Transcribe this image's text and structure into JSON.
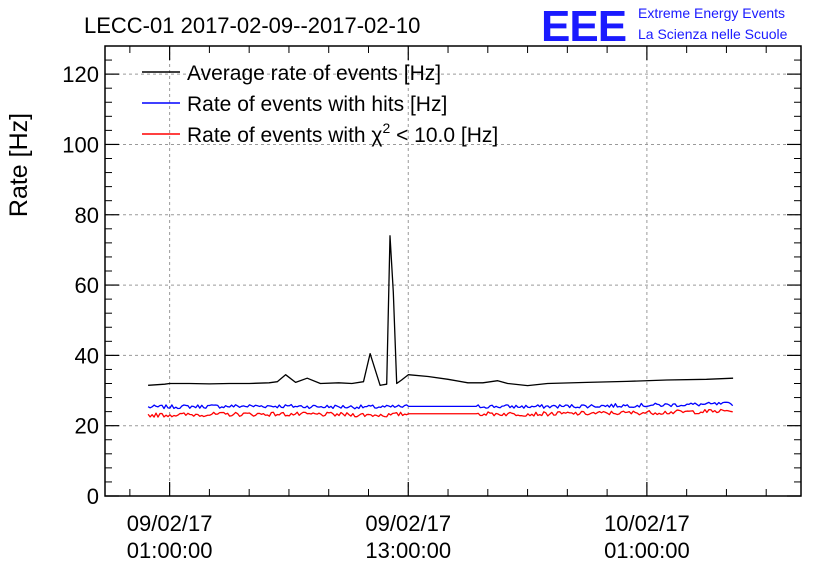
{
  "header": {
    "title": "LECC-01 2017-02-09--2017-02-10",
    "logo_mark": "EEE",
    "logo_line1": "Extreme Energy Events",
    "logo_line2": "La Scienza nelle Scuole"
  },
  "colors": {
    "avg": "#000000",
    "hits": "#0000ff",
    "chi2": "#ff0000",
    "logo": "#1a1aff",
    "grid": "#9a9a9a"
  },
  "chart_data": {
    "type": "line",
    "ylabel": "Rate [Hz]",
    "ylim": [
      0,
      128
    ],
    "yticks": [
      0,
      20,
      40,
      60,
      80,
      100,
      120
    ],
    "xlim": [
      "2017-02-08 21:45",
      "2017-02-10 08:45"
    ],
    "xticks": [
      {
        "x": "2017-02-09 01:00",
        "line1": "09/02/17",
        "line2": "01:00:00"
      },
      {
        "x": "2017-02-09 13:00",
        "line1": "09/02/17",
        "line2": "13:00:00"
      },
      {
        "x": "2017-02-10 01:00",
        "line1": "10/02/17",
        "line2": "01:00:00"
      }
    ],
    "grid": true,
    "legend_position": "top-left",
    "series": [
      {
        "name": "Average rate of events [Hz]",
        "color": "#000000",
        "points": [
          [
            "2017-02-08 23:55",
            31.5
          ],
          [
            "2017-02-09 00:45",
            31.8
          ],
          [
            "2017-02-09 01:00",
            32.0
          ],
          [
            "2017-02-09 02:00",
            32.0
          ],
          [
            "2017-02-09 03:00",
            31.9
          ],
          [
            "2017-02-09 04:00",
            32.0
          ],
          [
            "2017-02-09 05:00",
            32.0
          ],
          [
            "2017-02-09 06:00",
            32.2
          ],
          [
            "2017-02-09 06:25",
            32.5
          ],
          [
            "2017-02-09 06:50",
            34.5
          ],
          [
            "2017-02-09 07:20",
            32.3
          ],
          [
            "2017-02-09 07:55",
            33.5
          ],
          [
            "2017-02-09 08:35",
            32.0
          ],
          [
            "2017-02-09 09:30",
            32.2
          ],
          [
            "2017-02-09 10:10",
            32.0
          ],
          [
            "2017-02-09 10:45",
            32.5
          ],
          [
            "2017-02-09 11:05",
            40.5
          ],
          [
            "2017-02-09 11:35",
            31.5
          ],
          [
            "2017-02-09 11:55",
            31.8
          ],
          [
            "2017-02-09 12:05",
            74.0
          ],
          [
            "2017-02-09 12:15",
            58.0
          ],
          [
            "2017-02-09 12:25",
            32.0
          ],
          [
            "2017-02-09 12:40",
            33.0
          ],
          [
            "2017-02-09 13:00",
            34.5
          ],
          [
            "2017-02-09 14:00",
            34.0
          ],
          [
            "2017-02-09 15:00",
            33.2
          ],
          [
            "2017-02-09 16:00",
            32.2
          ],
          [
            "2017-02-09 16:45",
            32.2
          ],
          [
            "2017-02-09 17:30",
            32.8
          ],
          [
            "2017-02-09 18:00",
            32.0
          ],
          [
            "2017-02-09 19:00",
            31.4
          ],
          [
            "2017-02-09 20:00",
            32.0
          ],
          [
            "2017-02-09 22:00",
            32.3
          ],
          [
            "2017-02-10 00:00",
            32.6
          ],
          [
            "2017-02-10 02:00",
            33.0
          ],
          [
            "2017-02-10 04:00",
            33.2
          ],
          [
            "2017-02-10 05:20",
            33.5
          ]
        ]
      },
      {
        "name": "Rate of events with hits [Hz]",
        "color": "#0000ff",
        "noise": 0.55,
        "points": [
          [
            "2017-02-08 23:55",
            25.3
          ],
          [
            "2017-02-09 03:00",
            25.5
          ],
          [
            "2017-02-09 06:00",
            25.6
          ],
          [
            "2017-02-09 09:00",
            25.4
          ],
          [
            "2017-02-09 12:00",
            25.3
          ],
          [
            "2017-02-09 13:00",
            25.5
          ],
          [
            "2017-02-09 16:30",
            25.5
          ],
          [
            "2017-02-09 19:00",
            25.4
          ],
          [
            "2017-02-09 22:00",
            25.6
          ],
          [
            "2017-02-10 02:00",
            25.9
          ],
          [
            "2017-02-10 05:20",
            26.2
          ]
        ],
        "gaps": [
          [
            "2017-02-09 13:00",
            "2017-02-09 16:30"
          ]
        ]
      },
      {
        "name": "Rate of events with χ² < 10.0 [Hz]",
        "legend_main": "Rate of events with χ",
        "legend_sup": "2",
        "legend_tail": " < 10.0 [Hz]",
        "color": "#ff0000",
        "noise": 0.6,
        "points": [
          [
            "2017-02-08 23:55",
            23.0
          ],
          [
            "2017-02-09 03:00",
            23.2
          ],
          [
            "2017-02-09 06:00",
            23.3
          ],
          [
            "2017-02-09 09:00",
            23.2
          ],
          [
            "2017-02-09 12:00",
            23.0
          ],
          [
            "2017-02-09 13:00",
            23.4
          ],
          [
            "2017-02-09 16:30",
            23.4
          ],
          [
            "2017-02-09 19:00",
            23.3
          ],
          [
            "2017-02-09 22:00",
            23.5
          ],
          [
            "2017-02-10 02:00",
            23.8
          ],
          [
            "2017-02-10 05:20",
            24.2
          ]
        ],
        "gaps": [
          [
            "2017-02-09 13:00",
            "2017-02-09 16:30"
          ]
        ]
      }
    ]
  }
}
